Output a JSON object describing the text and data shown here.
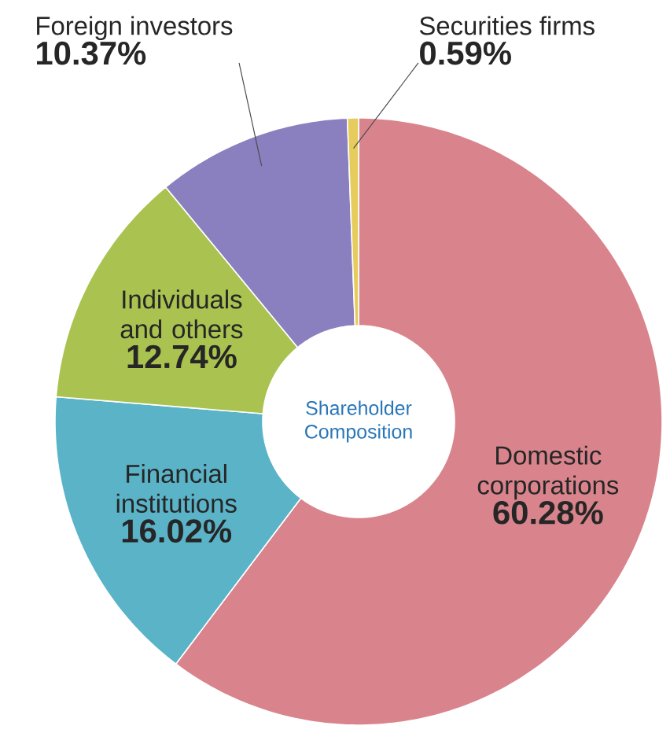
{
  "chart_data": {
    "type": "donut",
    "title": "Shareholder Composition",
    "categories": [
      "Domestic corporations",
      "Financial institutions",
      "Individuals and others",
      "Foreign investors",
      "Securities firms"
    ],
    "values": [
      60.28,
      16.02,
      12.74,
      10.37,
      0.59
    ],
    "colors": [
      "#d9848c",
      "#5bb3c8",
      "#a9c250",
      "#8a80c0",
      "#e6cc5c"
    ],
    "value_labels": [
      "60.28%",
      "16.02%",
      "12.74%",
      "10.37%",
      "0.59%"
    ]
  }
}
